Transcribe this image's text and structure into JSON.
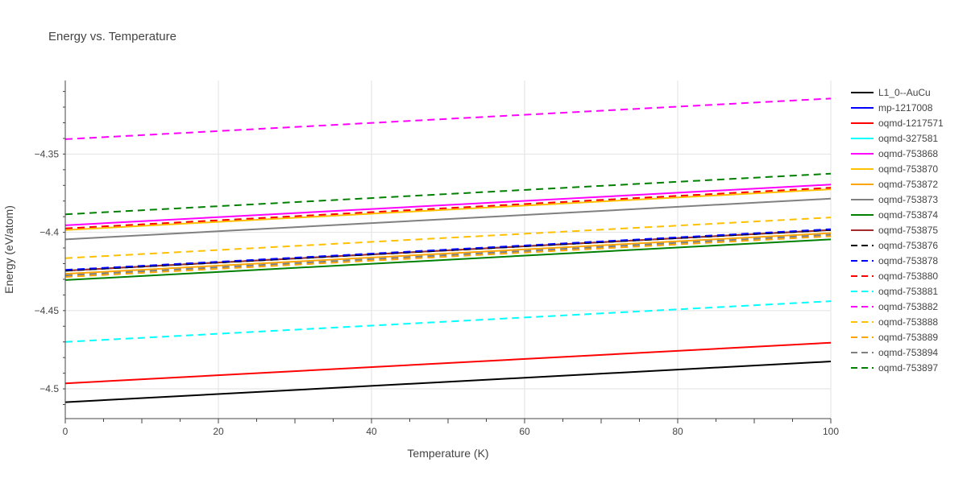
{
  "chart_data": {
    "type": "line",
    "title": "Energy vs. Temperature",
    "xlabel": "Temperature (K)",
    "ylabel": "Energy (eV/atom)",
    "xlim": [
      0,
      100
    ],
    "ylim": [
      -4.519,
      -4.303
    ],
    "x_ticks": [
      0,
      20,
      40,
      60,
      80,
      100
    ],
    "y_ticks": [
      -4.5,
      -4.45,
      -4.4,
      -4.35
    ],
    "y_tick_labels": [
      "−4.5",
      "−4.45",
      "−4.4",
      "−4.35"
    ],
    "grid": true,
    "legend_position": "right",
    "series": [
      {
        "name": "L1_0--AuCu",
        "color": "#000000",
        "dash": "solid",
        "x": [
          0,
          100
        ],
        "y": [
          -4.5085,
          -4.4825
        ]
      },
      {
        "name": "mp-1217008",
        "color": "#0000ff",
        "dash": "solid",
        "x": [
          0,
          100
        ],
        "y": [
          -4.4245,
          -4.3985
        ]
      },
      {
        "name": "oqmd-1217571",
        "color": "#ff0000",
        "dash": "solid",
        "x": [
          0,
          100
        ],
        "y": [
          -4.4965,
          -4.4705
        ]
      },
      {
        "name": "oqmd-327581",
        "color": "#00ffff",
        "dash": "solid",
        "x": [
          0,
          100
        ],
        "y": [
          -4.4245,
          -4.3985
        ]
      },
      {
        "name": "oqmd-753868",
        "color": "#ff00ff",
        "dash": "solid",
        "x": [
          0,
          100
        ],
        "y": [
          -4.3955,
          -4.3695
        ]
      },
      {
        "name": "oqmd-753870",
        "color": "#ffc000",
        "dash": "solid",
        "x": [
          0,
          100
        ],
        "y": [
          -4.3985,
          -4.3725
        ]
      },
      {
        "name": "oqmd-753872",
        "color": "#ffa500",
        "dash": "solid",
        "x": [
          0,
          100
        ],
        "y": [
          -4.4265,
          -4.4005
        ]
      },
      {
        "name": "oqmd-753873",
        "color": "#808080",
        "dash": "solid",
        "x": [
          0,
          100
        ],
        "y": [
          -4.4045,
          -4.3785
        ]
      },
      {
        "name": "oqmd-753874",
        "color": "#008000",
        "dash": "solid",
        "x": [
          0,
          100
        ],
        "y": [
          -4.4305,
          -4.4045
        ]
      },
      {
        "name": "oqmd-753875",
        "color": "#a52a2a",
        "dash": "solid",
        "x": [
          0,
          100
        ],
        "y": [
          -4.4245,
          -4.3985
        ]
      },
      {
        "name": "oqmd-753876",
        "color": "#000000",
        "dash": "dash",
        "x": [
          0,
          100
        ],
        "y": [
          -4.4245,
          -4.3985
        ]
      },
      {
        "name": "oqmd-753878",
        "color": "#0000ff",
        "dash": "dash",
        "x": [
          0,
          100
        ],
        "y": [
          -4.424,
          -4.398
        ]
      },
      {
        "name": "oqmd-753880",
        "color": "#ff0000",
        "dash": "dash",
        "x": [
          0,
          100
        ],
        "y": [
          -4.3975,
          -4.3715
        ]
      },
      {
        "name": "oqmd-753881",
        "color": "#00ffff",
        "dash": "dash",
        "x": [
          0,
          100
        ],
        "y": [
          -4.47,
          -4.444
        ]
      },
      {
        "name": "oqmd-753882",
        "color": "#ff00ff",
        "dash": "dash",
        "x": [
          0,
          100
        ],
        "y": [
          -4.3405,
          -4.3145
        ]
      },
      {
        "name": "oqmd-753888",
        "color": "#ffc000",
        "dash": "dash",
        "x": [
          0,
          100
        ],
        "y": [
          -4.4165,
          -4.3905
        ]
      },
      {
        "name": "oqmd-753889",
        "color": "#ffa500",
        "dash": "dash",
        "x": [
          0,
          100
        ],
        "y": [
          -4.4285,
          -4.4025
        ]
      },
      {
        "name": "oqmd-753894",
        "color": "#808080",
        "dash": "dash",
        "x": [
          0,
          100
        ],
        "y": [
          -4.4275,
          -4.4015
        ]
      },
      {
        "name": "oqmd-753897",
        "color": "#008000",
        "dash": "dash",
        "x": [
          0,
          100
        ],
        "y": [
          -4.3885,
          -4.3625
        ]
      }
    ]
  }
}
